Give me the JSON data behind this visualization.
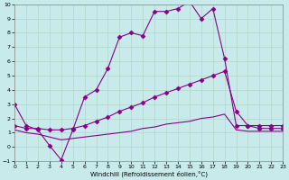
{
  "line1_x": [
    0,
    1,
    2,
    3,
    4,
    5,
    6,
    7,
    8,
    9,
    10,
    11,
    12,
    13,
    14,
    15,
    16,
    17,
    18,
    19,
    20,
    21,
    22,
    23
  ],
  "line1_y": [
    3.0,
    1.5,
    1.2,
    0.1,
    -0.9,
    1.2,
    3.5,
    4.0,
    5.5,
    7.7,
    8.0,
    7.8,
    9.5,
    9.5,
    9.7,
    10.2,
    9.0,
    9.7,
    6.2,
    1.5,
    1.5,
    1.5,
    1.5,
    1.5
  ],
  "line2_x": [
    0,
    1,
    2,
    3,
    4,
    5,
    6,
    7,
    8,
    9,
    10,
    11,
    12,
    13,
    14,
    15,
    16,
    17,
    18,
    19,
    20,
    21,
    22,
    23
  ],
  "line2_y": [
    1.5,
    1.3,
    1.3,
    1.2,
    1.2,
    1.3,
    1.5,
    1.8,
    2.1,
    2.5,
    2.8,
    3.1,
    3.5,
    3.8,
    4.1,
    4.4,
    4.7,
    5.0,
    5.3,
    2.5,
    1.5,
    1.3,
    1.3,
    1.3
  ],
  "line3_x": [
    0,
    1,
    2,
    3,
    4,
    5,
    6,
    7,
    8,
    9,
    10,
    11,
    12,
    13,
    14,
    15,
    16,
    17,
    18,
    19,
    20,
    21,
    22,
    23
  ],
  "line3_y": [
    1.2,
    1.0,
    0.9,
    0.7,
    0.5,
    0.6,
    0.7,
    0.8,
    0.9,
    1.0,
    1.1,
    1.3,
    1.4,
    1.6,
    1.7,
    1.8,
    2.0,
    2.1,
    2.3,
    1.2,
    1.1,
    1.1,
    1.1,
    1.1
  ],
  "line_color": "#880088",
  "marker": "D",
  "markersize": 2.5,
  "bg_color": "#c8eaea",
  "grid_color": "#b0d8c8",
  "xlabel": "Windchill (Refroidissement éolien,°C)",
  "xlim": [
    0,
    23
  ],
  "ylim": [
    -1,
    10
  ],
  "xticks": [
    0,
    1,
    2,
    3,
    4,
    5,
    6,
    7,
    8,
    9,
    10,
    11,
    12,
    13,
    14,
    15,
    16,
    17,
    18,
    19,
    20,
    21,
    22,
    23
  ],
  "yticks": [
    -1,
    0,
    1,
    2,
    3,
    4,
    5,
    6,
    7,
    8,
    9,
    10
  ]
}
